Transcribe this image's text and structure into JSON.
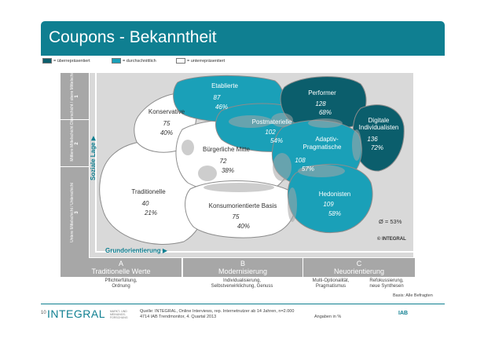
{
  "title": "Coupons - Bekanntheit",
  "legend": {
    "over": "= überrepräsentiert",
    "avg": "= durchschnittlich",
    "under": "= unterrepräsentiert",
    "colors": {
      "over": "#0b5e6c",
      "avg": "#1aa0b8",
      "under": "#ffffff"
    }
  },
  "social_rows": [
    {
      "label": "Oberschicht / obere Mittelschicht",
      "num": "1"
    },
    {
      "label": "Mittlere Mittelschicht",
      "num": "2"
    },
    {
      "label": "Untere Mittelschicht / Unterschicht",
      "num": "3"
    }
  ],
  "axis": {
    "vertical": "Soziale Lage",
    "horizontal": "Grundorientierung"
  },
  "milieus": [
    {
      "id": "konservative",
      "name": "Konservative",
      "value": "75",
      "pct": "40%",
      "level": "under"
    },
    {
      "id": "etablierte",
      "name": "Etablierte",
      "value": "87",
      "pct": "46%",
      "level": "avg"
    },
    {
      "id": "performer",
      "name": "Performer",
      "value": "128",
      "pct": "68%",
      "level": "over"
    },
    {
      "id": "postmaterielle",
      "name": "Postmaterielle",
      "value": "102",
      "pct": "54%",
      "level": "avg"
    },
    {
      "id": "digitale",
      "name": "Digitale Individualisten",
      "name1": "Digitale",
      "name2": "Individualisten",
      "value": "136",
      "pct": "72%",
      "level": "over"
    },
    {
      "id": "buergerliche",
      "name": "Bürgerliche Mitte",
      "value": "72",
      "pct": "38%",
      "level": "under"
    },
    {
      "id": "adaptiv",
      "name": "Adaptiv-Pragmatische",
      "name1": "Adaptiv-",
      "name2": "Pragmatische",
      "value": "108",
      "pct": "57%",
      "level": "avg"
    },
    {
      "id": "traditionelle",
      "name": "Traditionelle",
      "value": "40",
      "pct": "21%",
      "level": "under"
    },
    {
      "id": "konsumorientierte",
      "name": "Konsumorientierte Basis",
      "value": "75",
      "pct": "40%",
      "level": "under"
    },
    {
      "id": "hedonisten",
      "name": "Hedonisten",
      "value": "109",
      "pct": "58%",
      "level": "avg"
    }
  ],
  "average": "Ø = 53%",
  "copyright": "© INTEGRAL",
  "orientations": [
    {
      "letter": "A",
      "name": "Traditionelle Werte",
      "desc1": "Pflichterfüllung,",
      "desc2": "Ordnung"
    },
    {
      "letter": "B",
      "name": "Modernisierung",
      "desc1": "Individualisierung,",
      "desc2": "Selbstverwirklichung, Genuss"
    },
    {
      "letter": "C",
      "name": "Neuorientierung",
      "desc1": "Multi-Optionalität,",
      "desc2": "Pragmatismus",
      "desc3": "Refokussierung,",
      "desc4": "neue Synthesen"
    }
  ],
  "basis": "Basis: Alle Befragten",
  "footer": {
    "page": "10",
    "brand": "INTEGRAL",
    "tagline": "MARKT- UND MEINUNGS- FORSCHUNG",
    "source1": "Quelle: INTEGRAL, Online Interviews, rep. Internetnutzer ab 14 Jahren, n=2.000",
    "source2": "4714 IAB Trendmonitor, 4. Quartal 2013",
    "pct_note": "Angaben in %",
    "iab": "IAB"
  }
}
